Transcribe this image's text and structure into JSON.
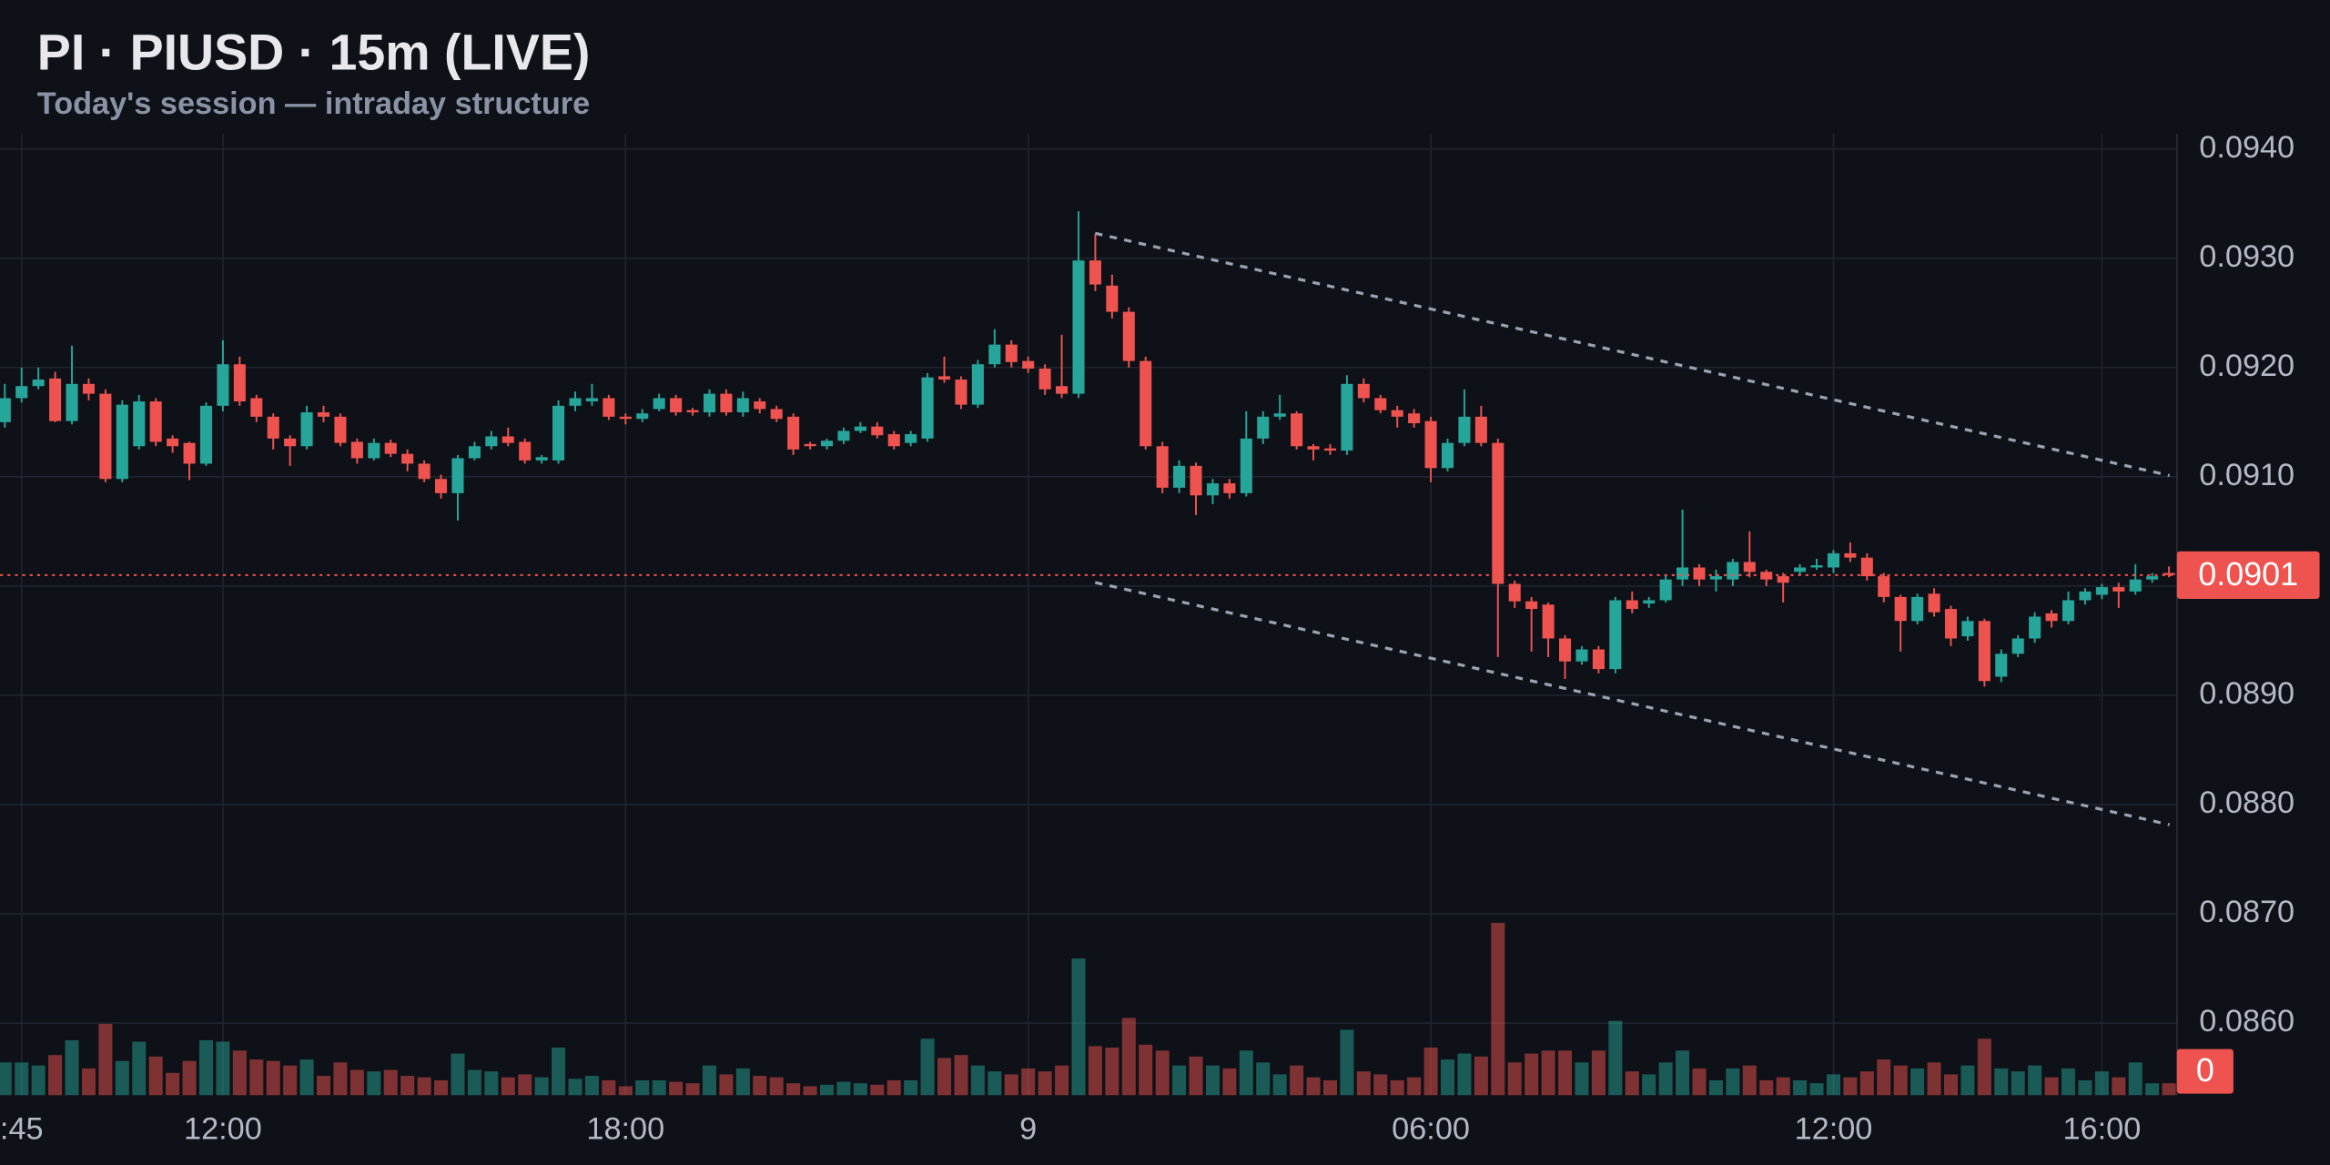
{
  "chart_data": {
    "type": "candlestick",
    "title": "PI · PIUSD · 15m (LIVE)",
    "subtitle": "Today's session — intraday structure",
    "up_color": "#26a69a",
    "down_color": "#ef5350",
    "ylim": [
      0.08534,
      0.09414
    ],
    "yticks": [
      {
        "value": 0.086,
        "label": "0.0860"
      },
      {
        "value": 0.087,
        "label": "0.0870"
      },
      {
        "value": 0.088,
        "label": "0.0880"
      },
      {
        "value": 0.089,
        "label": "0.0890"
      },
      {
        "value": 0.09,
        "label": "0.0900"
      },
      {
        "value": 0.091,
        "label": "0.0910"
      },
      {
        "value": 0.092,
        "label": "0.0920"
      },
      {
        "value": 0.093,
        "label": "0.0930"
      },
      {
        "value": 0.094,
        "label": "0.0940"
      }
    ],
    "grid": true,
    "last_price": 0.0901,
    "volume_ticks": [
      0
    ],
    "categories": [
      null,
      ":45",
      null,
      null,
      null,
      null,
      null,
      null,
      null,
      null,
      null,
      null,
      null,
      "12:00",
      null,
      null,
      null,
      null,
      null,
      null,
      null,
      null,
      null,
      null,
      null,
      null,
      null,
      null,
      null,
      null,
      null,
      null,
      null,
      null,
      null,
      null,
      null,
      "18:00",
      null,
      null,
      null,
      null,
      null,
      null,
      null,
      null,
      null,
      null,
      null,
      null,
      null,
      null,
      null,
      null,
      null,
      null,
      null,
      null,
      null,
      null,
      null,
      "9",
      null,
      null,
      null,
      null,
      null,
      null,
      null,
      null,
      null,
      null,
      null,
      null,
      null,
      null,
      null,
      null,
      null,
      null,
      null,
      null,
      null,
      null,
      null,
      "06:00",
      null,
      null,
      null,
      null,
      null,
      null,
      null,
      null,
      null,
      null,
      null,
      null,
      null,
      null,
      null,
      null,
      null,
      null,
      null,
      null,
      null,
      null,
      null,
      "12:00",
      null,
      null,
      null,
      null,
      null,
      null,
      null,
      null,
      null,
      null,
      null,
      null,
      null,
      null,
      null,
      "16:00",
      null,
      null,
      null,
      null
    ],
    "candles": [
      [
        0.0915,
        0.09185,
        0.09145,
        0.09172
      ],
      [
        0.09172,
        0.092,
        0.09168,
        0.09183
      ],
      [
        0.09183,
        0.092,
        0.0918,
        0.09189
      ],
      [
        0.0919,
        0.09196,
        0.0915,
        0.09151
      ],
      [
        0.09151,
        0.0922,
        0.09148,
        0.09185
      ],
      [
        0.09185,
        0.0919,
        0.0917,
        0.09176
      ],
      [
        0.09176,
        0.0918,
        0.09095,
        0.09098
      ],
      [
        0.09098,
        0.0917,
        0.09095,
        0.09166
      ],
      [
        0.09128,
        0.09175,
        0.09125,
        0.09169
      ],
      [
        0.09169,
        0.09172,
        0.09128,
        0.09132
      ],
      [
        0.09135,
        0.09138,
        0.09122,
        0.09128
      ],
      [
        0.09131,
        0.09132,
        0.09097,
        0.09112
      ],
      [
        0.09112,
        0.09168,
        0.0911,
        0.09165
      ],
      [
        0.09165,
        0.09225,
        0.0916,
        0.09203
      ],
      [
        0.09203,
        0.0921,
        0.09165,
        0.09169
      ],
      [
        0.09172,
        0.09175,
        0.0915,
        0.09155
      ],
      [
        0.09155,
        0.09158,
        0.09125,
        0.09135
      ],
      [
        0.09135,
        0.09138,
        0.0911,
        0.09128
      ],
      [
        0.09128,
        0.09165,
        0.09125,
        0.09159
      ],
      [
        0.09159,
        0.09165,
        0.0915,
        0.09155
      ],
      [
        0.09155,
        0.09158,
        0.09128,
        0.09131
      ],
      [
        0.09132,
        0.09135,
        0.09112,
        0.09117
      ],
      [
        0.09117,
        0.09135,
        0.09115,
        0.09131
      ],
      [
        0.09131,
        0.09134,
        0.09118,
        0.09121
      ],
      [
        0.09121,
        0.09125,
        0.09105,
        0.09112
      ],
      [
        0.09112,
        0.09115,
        0.09095,
        0.09098
      ],
      [
        0.09098,
        0.09102,
        0.0908,
        0.09085
      ],
      [
        0.09085,
        0.0912,
        0.0906,
        0.09117
      ],
      [
        0.09117,
        0.09132,
        0.09115,
        0.09128
      ],
      [
        0.09128,
        0.09142,
        0.09125,
        0.09137
      ],
      [
        0.09137,
        0.09145,
        0.09128,
        0.09131
      ],
      [
        0.09132,
        0.09135,
        0.09112,
        0.09115
      ],
      [
        0.09115,
        0.0912,
        0.09112,
        0.09118
      ],
      [
        0.09115,
        0.0917,
        0.09112,
        0.09165
      ],
      [
        0.09165,
        0.09178,
        0.0916,
        0.09172
      ],
      [
        0.09169,
        0.09185,
        0.09165,
        0.09172
      ],
      [
        0.09172,
        0.09175,
        0.09152,
        0.09155
      ],
      [
        0.09155,
        0.09158,
        0.09148,
        0.09153
      ],
      [
        0.09153,
        0.09162,
        0.0915,
        0.09158
      ],
      [
        0.09162,
        0.09176,
        0.0916,
        0.09172
      ],
      [
        0.09172,
        0.09175,
        0.09156,
        0.09159
      ],
      [
        0.09161,
        0.09163,
        0.09156,
        0.09159
      ],
      [
        0.09159,
        0.0918,
        0.09155,
        0.09176
      ],
      [
        0.09176,
        0.0918,
        0.09156,
        0.09159
      ],
      [
        0.09159,
        0.09178,
        0.09155,
        0.09172
      ],
      [
        0.09169,
        0.09172,
        0.09158,
        0.09162
      ],
      [
        0.09162,
        0.09165,
        0.0915,
        0.09153
      ],
      [
        0.09155,
        0.09158,
        0.0912,
        0.09125
      ],
      [
        0.0913,
        0.09132,
        0.09125,
        0.09128
      ],
      [
        0.09128,
        0.09135,
        0.09125,
        0.09133
      ],
      [
        0.09133,
        0.09145,
        0.0913,
        0.09142
      ],
      [
        0.09142,
        0.0915,
        0.0914,
        0.09146
      ],
      [
        0.09146,
        0.0915,
        0.09135,
        0.09138
      ],
      [
        0.09139,
        0.09142,
        0.09125,
        0.09128
      ],
      [
        0.09131,
        0.09142,
        0.09128,
        0.09139
      ],
      [
        0.09135,
        0.09195,
        0.09132,
        0.09191
      ],
      [
        0.09192,
        0.0921,
        0.09186,
        0.09189
      ],
      [
        0.09189,
        0.09192,
        0.09162,
        0.09166
      ],
      [
        0.09166,
        0.09207,
        0.09163,
        0.09203
      ],
      [
        0.09203,
        0.09235,
        0.092,
        0.09221
      ],
      [
        0.09221,
        0.09225,
        0.092,
        0.09205
      ],
      [
        0.09206,
        0.0921,
        0.09195,
        0.09199
      ],
      [
        0.09199,
        0.09203,
        0.09175,
        0.0918
      ],
      [
        0.09183,
        0.0923,
        0.09172,
        0.09176
      ],
      [
        0.09176,
        0.09343,
        0.09172,
        0.09298
      ],
      [
        0.09298,
        0.09322,
        0.0927,
        0.09276
      ],
      [
        0.09275,
        0.09285,
        0.09245,
        0.09251
      ],
      [
        0.09251,
        0.09255,
        0.092,
        0.09206
      ],
      [
        0.09206,
        0.0921,
        0.09125,
        0.09128
      ],
      [
        0.09128,
        0.09132,
        0.09085,
        0.0909
      ],
      [
        0.0909,
        0.09115,
        0.09085,
        0.0911
      ],
      [
        0.0911,
        0.09113,
        0.09065,
        0.09083
      ],
      [
        0.09083,
        0.09098,
        0.09075,
        0.09094
      ],
      [
        0.09094,
        0.09098,
        0.0908,
        0.09085
      ],
      [
        0.09085,
        0.0916,
        0.09082,
        0.09135
      ],
      [
        0.09135,
        0.0916,
        0.0913,
        0.09155
      ],
      [
        0.09155,
        0.09175,
        0.09152,
        0.09158
      ],
      [
        0.09158,
        0.0916,
        0.09125,
        0.09128
      ],
      [
        0.09128,
        0.0913,
        0.09115,
        0.09125
      ],
      [
        0.09126,
        0.0913,
        0.0912,
        0.09124
      ],
      [
        0.09124,
        0.09193,
        0.0912,
        0.09185
      ],
      [
        0.09185,
        0.0919,
        0.09168,
        0.09172
      ],
      [
        0.09172,
        0.09175,
        0.09158,
        0.09161
      ],
      [
        0.09161,
        0.09165,
        0.09145,
        0.09155
      ],
      [
        0.09158,
        0.09162,
        0.09145,
        0.09149
      ],
      [
        0.09151,
        0.09155,
        0.09095,
        0.09108
      ],
      [
        0.09108,
        0.09135,
        0.09105,
        0.09131
      ],
      [
        0.09131,
        0.0918,
        0.09128,
        0.09155
      ],
      [
        0.09155,
        0.09165,
        0.09128,
        0.09131
      ],
      [
        0.09131,
        0.09135,
        0.08935,
        0.09002
      ],
      [
        0.09002,
        0.09005,
        0.0898,
        0.08986
      ],
      [
        0.08986,
        0.0899,
        0.0894,
        0.08979
      ],
      [
        0.08983,
        0.08985,
        0.08935,
        0.08952
      ],
      [
        0.08952,
        0.08955,
        0.08915,
        0.08931
      ],
      [
        0.08931,
        0.08945,
        0.08928,
        0.08942
      ],
      [
        0.08942,
        0.08945,
        0.0892,
        0.08924
      ],
      [
        0.08924,
        0.0899,
        0.0892,
        0.08987
      ],
      [
        0.08987,
        0.08995,
        0.08975,
        0.08979
      ],
      [
        0.08984,
        0.0899,
        0.0898,
        0.08987
      ],
      [
        0.08987,
        0.0901,
        0.08985,
        0.09006
      ],
      [
        0.09006,
        0.0907,
        0.09,
        0.09017
      ],
      [
        0.09017,
        0.0902,
        0.09,
        0.09006
      ],
      [
        0.09006,
        0.09015,
        0.08995,
        0.09009
      ],
      [
        0.09006,
        0.09025,
        0.09,
        0.09022
      ],
      [
        0.09022,
        0.0905,
        0.09008,
        0.09013
      ],
      [
        0.09013,
        0.09015,
        0.09,
        0.09006
      ],
      [
        0.09009,
        0.09012,
        0.08985,
        0.09003
      ],
      [
        0.09013,
        0.0902,
        0.0901,
        0.09017
      ],
      [
        0.09017,
        0.09025,
        0.09015,
        0.09019
      ],
      [
        0.09017,
        0.09033,
        0.09012,
        0.0903
      ],
      [
        0.0903,
        0.0904,
        0.09022,
        0.09026
      ],
      [
        0.09026,
        0.0903,
        0.09005,
        0.09009
      ],
      [
        0.09009,
        0.09012,
        0.08985,
        0.0899
      ],
      [
        0.0899,
        0.08992,
        0.0894,
        0.08968
      ],
      [
        0.08968,
        0.08993,
        0.08965,
        0.0899
      ],
      [
        0.08993,
        0.08998,
        0.08972,
        0.08976
      ],
      [
        0.08979,
        0.08982,
        0.08945,
        0.08952
      ],
      [
        0.08954,
        0.08972,
        0.0895,
        0.08968
      ],
      [
        0.08968,
        0.0897,
        0.08908,
        0.08913
      ],
      [
        0.08917,
        0.08942,
        0.08912,
        0.08938
      ],
      [
        0.08938,
        0.08955,
        0.08935,
        0.08952
      ],
      [
        0.08952,
        0.08976,
        0.08948,
        0.08972
      ],
      [
        0.08975,
        0.08978,
        0.08962,
        0.08968
      ],
      [
        0.08968,
        0.08995,
        0.08965,
        0.08987
      ],
      [
        0.08987,
        0.08998,
        0.08983,
        0.08995
      ],
      [
        0.08992,
        0.09002,
        0.08988,
        0.08999
      ],
      [
        0.08999,
        0.09003,
        0.0898,
        0.08995
      ],
      [
        0.08995,
        0.0902,
        0.08992,
        0.09006
      ],
      [
        0.09006,
        0.09012,
        0.09003,
        0.09009
      ],
      [
        0.09012,
        0.09018,
        0.09008,
        0.0901
      ]
    ],
    "volume": [
      22,
      22,
      20,
      27,
      37,
      18,
      48,
      23,
      36,
      26,
      15,
      23,
      37,
      36,
      30,
      24,
      23,
      20,
      24,
      13,
      22,
      17,
      16,
      17,
      13,
      12,
      10,
      28,
      17,
      16,
      12,
      14,
      12,
      32,
      11,
      13,
      10,
      6,
      10,
      10,
      9,
      8,
      20,
      14,
      18,
      13,
      12,
      8,
      6,
      7,
      9,
      8,
      7,
      10,
      10,
      38,
      25,
      27,
      20,
      16,
      14,
      18,
      16,
      20,
      92,
      33,
      32,
      52,
      34,
      30,
      20,
      26,
      20,
      18,
      30,
      22,
      14,
      20,
      12,
      10,
      44,
      16,
      14,
      10,
      12,
      32,
      24,
      28,
      26,
      116,
      22,
      28,
      30,
      30,
      22,
      30,
      50,
      16,
      14,
      22,
      30,
      18,
      10,
      18,
      20,
      10,
      12,
      10,
      8,
      14,
      12,
      16,
      24,
      20,
      18,
      22,
      14,
      20,
      38,
      18,
      16,
      20,
      12,
      18,
      10,
      16,
      12,
      22,
      8,
      8
    ]
  }
}
